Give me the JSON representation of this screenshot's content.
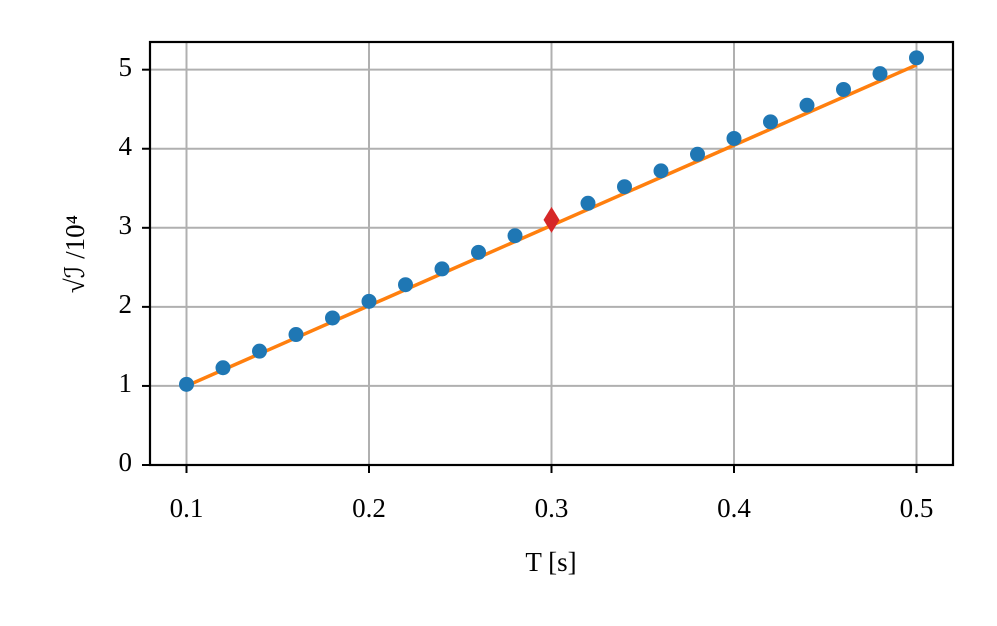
{
  "chart_data": {
    "type": "scatter",
    "xlabel": "T [s]",
    "ylabel": "√ℐ /10⁴",
    "xlim": [
      0.08,
      0.52
    ],
    "xticks": [
      0.1,
      0.2,
      0.3,
      0.4,
      0.5
    ],
    "ylim": [
      0,
      5.35
    ],
    "yticks": [
      0,
      1,
      2,
      3,
      4,
      5
    ],
    "grid": true,
    "series": [
      {
        "kind": "line",
        "color": "#ff7f0e",
        "x": [
          0.1,
          0.5
        ],
        "values": [
          1.0,
          5.06
        ]
      },
      {
        "kind": "scatter",
        "marker": "circle",
        "color": "#1f77b4",
        "x": [
          0.1,
          0.12,
          0.14,
          0.16,
          0.18,
          0.2,
          0.22,
          0.24,
          0.26,
          0.28,
          0.32,
          0.34,
          0.36,
          0.38,
          0.4,
          0.42,
          0.44,
          0.46,
          0.48,
          0.5
        ],
        "values": [
          1.02,
          1.23,
          1.44,
          1.65,
          1.86,
          2.07,
          2.28,
          2.48,
          2.69,
          2.9,
          3.31,
          3.52,
          3.72,
          3.93,
          4.13,
          4.34,
          4.55,
          4.75,
          4.95,
          5.15
        ]
      },
      {
        "kind": "scatter",
        "marker": "diamond",
        "color": "#d62728",
        "x": [
          0.3
        ],
        "values": [
          3.1
        ]
      }
    ]
  }
}
